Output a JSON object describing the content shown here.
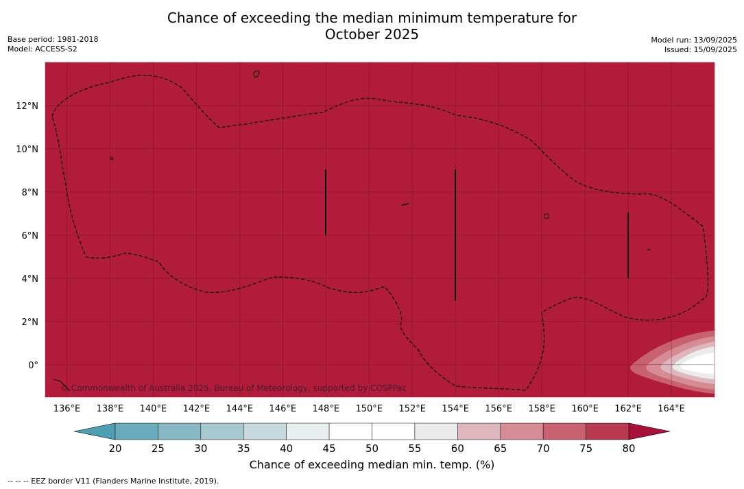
{
  "header": {
    "title_line1": "Chance of exceeding the median minimum temperature for",
    "title_line2": "October 2025",
    "base_period": "Base period: 1981-2018",
    "model": "Model: ACCESS-S2",
    "model_run": "Model run: 13/09/2025",
    "issued": "Issued: 15/09/2025"
  },
  "map": {
    "background_color": "#b11c3b",
    "longitude_labels": [
      "136°E",
      "138°E",
      "140°E",
      "142°E",
      "144°E",
      "146°E",
      "148°E",
      "150°E",
      "152°E",
      "154°E",
      "156°E",
      "158°E",
      "160°E",
      "162°E",
      "164°E"
    ],
    "longitude_values": [
      136,
      138,
      140,
      142,
      144,
      146,
      148,
      150,
      152,
      154,
      156,
      158,
      160,
      162,
      164
    ],
    "latitude_labels": [
      "12°N",
      "10°N",
      "8°N",
      "6°N",
      "4°N",
      "2°N",
      "0°"
    ],
    "latitude_values": [
      12,
      10,
      8,
      6,
      4,
      2,
      0
    ],
    "lon_range": [
      135,
      166
    ],
    "lat_range": [
      -1.5,
      14
    ],
    "copyright": "© Commonwealth of Australia 2025, Bureau of Meteorology, supported by COSPPac"
  },
  "colorbar": {
    "tick_labels": [
      "20",
      "25",
      "30",
      "35",
      "40",
      "45",
      "50",
      "55",
      "60",
      "65",
      "70",
      "75",
      "80"
    ],
    "colors": [
      "#5ba4b5",
      "#6aacbb",
      "#89b8c5",
      "#a8c8cf",
      "#c8d9de",
      "#e9eff1",
      "#ffffff",
      "#ffffff",
      "#ebebeb",
      "#deb6bd",
      "#d58c95",
      "#c86270",
      "#b83a52"
    ],
    "under_color": "#4fa0b2",
    "over_color": "#a8123a",
    "label": "Chance of exceeding median min. temp. (%)"
  },
  "footer": {
    "legend_text": "--  --  -- EEZ border V11 (Flanders Marine Institute, 2019)."
  }
}
